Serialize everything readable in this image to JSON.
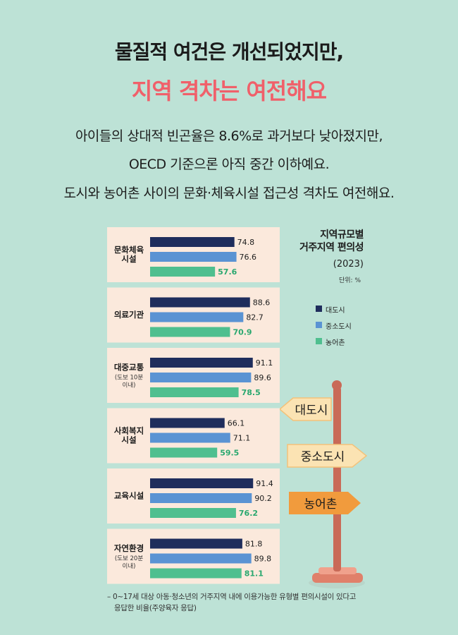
{
  "headline": {
    "line1": "물질적 여건은 개선되었지만,",
    "line2": "지역 격차는 여전해요"
  },
  "description": [
    "아이들의 상대적 빈곤율은 8.6%로 과거보다 낮아졌지만,",
    "OECD 기준으론 아직 중간 이하예요.",
    "도시와 농어촌 사이의 문화·체육시설 접근성 격차도 여전해요."
  ],
  "chart_title": [
    "지역규모별",
    "거주지역 편의성"
  ],
  "chart_year": "(2023)",
  "chart_unit": "단위: %",
  "signs": [
    "대도시",
    "중소도시",
    "농어촌"
  ],
  "footnote": [
    "– 0~17세 대상 아동·청소년의 거주지역 내에 이용가능한 유형별 편의시설이 있다고",
    "응답한 비율(주양육자 응답)"
  ],
  "colors": {
    "background": "#bde2d6",
    "panel": "#fbe9dc",
    "large_city": "#1f2d5c",
    "mid_city": "#5a93d3",
    "rural": "#4fbf8f",
    "headline_accent": "#f0606a"
  },
  "chart_data": {
    "type": "bar",
    "orientation": "horizontal",
    "categories": [
      {
        "label": [
          "문화체육",
          "시설"
        ],
        "sub": []
      },
      {
        "label": [
          "의료기관"
        ],
        "sub": []
      },
      {
        "label": [
          "대중교통"
        ],
        "sub": [
          "(도보 10분",
          "이내)"
        ]
      },
      {
        "label": [
          "사회복지",
          "시설"
        ],
        "sub": []
      },
      {
        "label": [
          "교육시설"
        ],
        "sub": []
      },
      {
        "label": [
          "자연환경"
        ],
        "sub": [
          "(도보 20분",
          "이내)"
        ]
      }
    ],
    "series": [
      {
        "name": "대도시",
        "color": "#1f2d5c",
        "values": [
          74.8,
          88.6,
          91.1,
          66.1,
          91.4,
          81.8
        ]
      },
      {
        "name": "중소도시",
        "color": "#5a93d3",
        "values": [
          76.6,
          82.7,
          89.6,
          71.1,
          90.2,
          89.8
        ]
      },
      {
        "name": "농어촌",
        "color": "#4fbf8f",
        "values": [
          57.6,
          70.9,
          78.5,
          59.5,
          76.2,
          81.1
        ]
      }
    ],
    "value_label_colors": [
      "#1d1d1d",
      "#1d1d1d",
      "#2aa86f"
    ],
    "xlim": [
      0,
      100
    ],
    "grid": false,
    "legend": "right"
  }
}
